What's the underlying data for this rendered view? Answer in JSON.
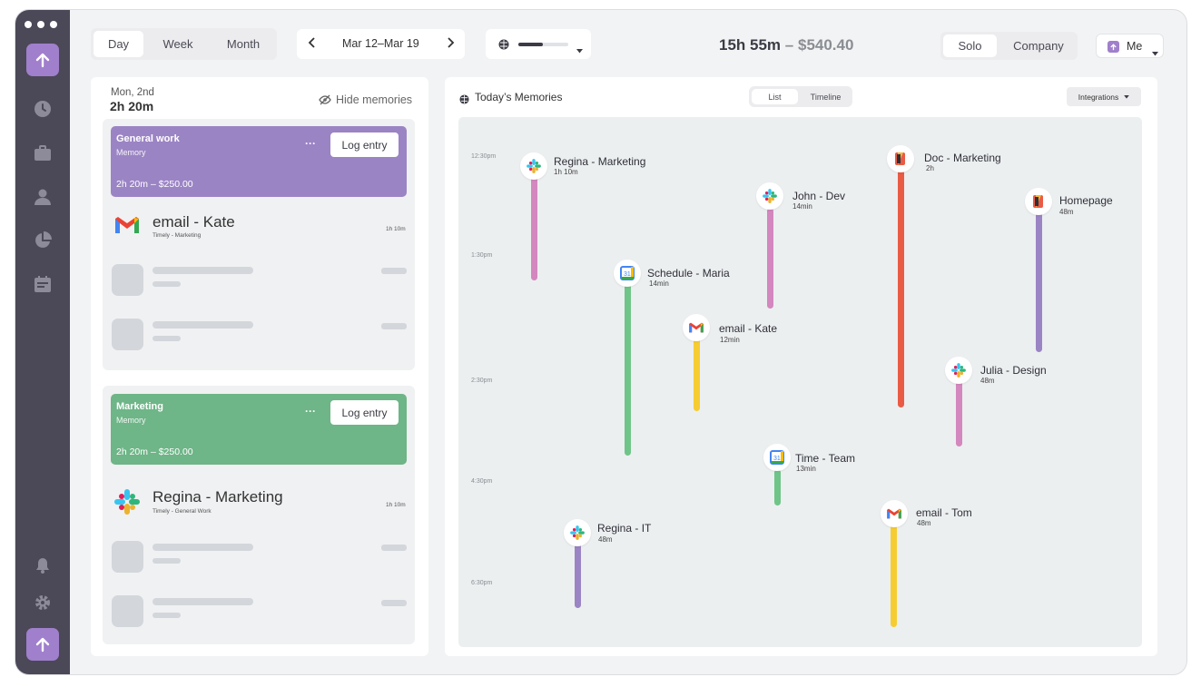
{
  "toolbar": {
    "views": [
      "Day",
      "Week",
      "Month"
    ],
    "date_range": "Mar 12–Mar 19",
    "total_time": "15h 55m",
    "dash": "–",
    "total_amount": "$540.40",
    "scope_options": [
      "Solo",
      "Company"
    ],
    "user_label": "Me"
  },
  "left_panel": {
    "date": "Mon, 2nd",
    "duration": "2h 20m",
    "hide_label": "Hide memories",
    "groups": [
      {
        "title": "General work",
        "subtitle": "Memory",
        "amount": "2h 20m – $250.00",
        "log_label": "Log entry",
        "color": "#9b84c4",
        "item_title": "email - Kate",
        "item_sub": "Timely - Marketing",
        "item_time": "1h 10m",
        "item_icon": "gmail-icon"
      },
      {
        "title": "Marketing",
        "subtitle": "Memory",
        "amount": "2h 20m – $250.00",
        "log_label": "Log entry",
        "color": "#6eb587",
        "item_title": "Regina - Marketing",
        "item_sub": "Timely - General Work",
        "item_time": "1h 10m",
        "item_icon": "slack-icon"
      }
    ],
    "more_label": "···"
  },
  "memories": {
    "title": "Today’s Memories",
    "tabs": [
      "List",
      "Timeline"
    ],
    "integrations_label": "Integrations",
    "time_labels": [
      "12:30pm",
      "1:30pm",
      "2:30pm",
      "4:30pm",
      "6:30pm"
    ],
    "items": [
      {
        "title": "Regina - Marketing",
        "sub": "1h 10m",
        "icon": "slack-icon",
        "color": "#d487be"
      },
      {
        "title": "John - Dev",
        "sub": "14min",
        "icon": "slack-icon",
        "color": "#d487be"
      },
      {
        "title": "Doc - Marketing",
        "sub": "2h",
        "icon": "doc-icon",
        "color": "#ea5b45"
      },
      {
        "title": "Homepage",
        "sub": "48m",
        "icon": "doc-icon",
        "color": "#9b84c4"
      },
      {
        "title": "Schedule - Maria",
        "sub": "14min",
        "icon": "calendar-icon",
        "color": "#6fc587"
      },
      {
        "title": "email - Kate",
        "sub": "12min",
        "icon": "gmail-icon",
        "color": "#f6cc33"
      },
      {
        "title": "Julia - Design",
        "sub": "48m",
        "icon": "slack-icon",
        "color": "#d487be"
      },
      {
        "title": "Time - Team",
        "sub": "13min",
        "icon": "calendar-icon",
        "color": "#6fc587"
      },
      {
        "title": "email - Tom",
        "sub": "48m",
        "icon": "gmail-icon",
        "color": "#f6cc33"
      },
      {
        "title": "Regina - IT",
        "sub": "48m",
        "icon": "slack-icon",
        "color": "#9b84c4"
      }
    ]
  }
}
